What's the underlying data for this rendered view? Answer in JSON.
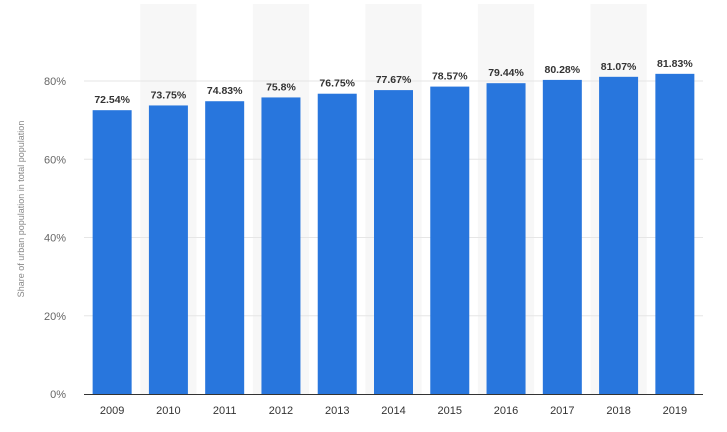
{
  "chart_data": {
    "type": "bar",
    "title": "",
    "xlabel": "",
    "ylabel": "Share of urban population in total population",
    "categories": [
      "2009",
      "2010",
      "2011",
      "2012",
      "2013",
      "2014",
      "2015",
      "2016",
      "2017",
      "2018",
      "2019"
    ],
    "values": [
      72.54,
      73.75,
      74.83,
      75.8,
      76.75,
      77.67,
      78.57,
      79.44,
      80.28,
      81.07,
      81.83
    ],
    "data_labels": [
      "72.54%",
      "73.75%",
      "74.83%",
      "75.8%",
      "76.75%",
      "77.67%",
      "78.57%",
      "79.44%",
      "80.28%",
      "81.07%",
      "81.83%"
    ],
    "yticks": [
      0,
      20,
      40,
      60,
      80
    ],
    "ytick_labels": [
      "0%",
      "20%",
      "40%",
      "60%",
      "80%"
    ],
    "ylim": [
      0,
      90
    ],
    "grid": true,
    "legend": "none",
    "colors": {
      "bar": "#2876dd",
      "band": "#f7f7f7",
      "grid": "#e6e6e6",
      "axis": "#333333"
    }
  }
}
